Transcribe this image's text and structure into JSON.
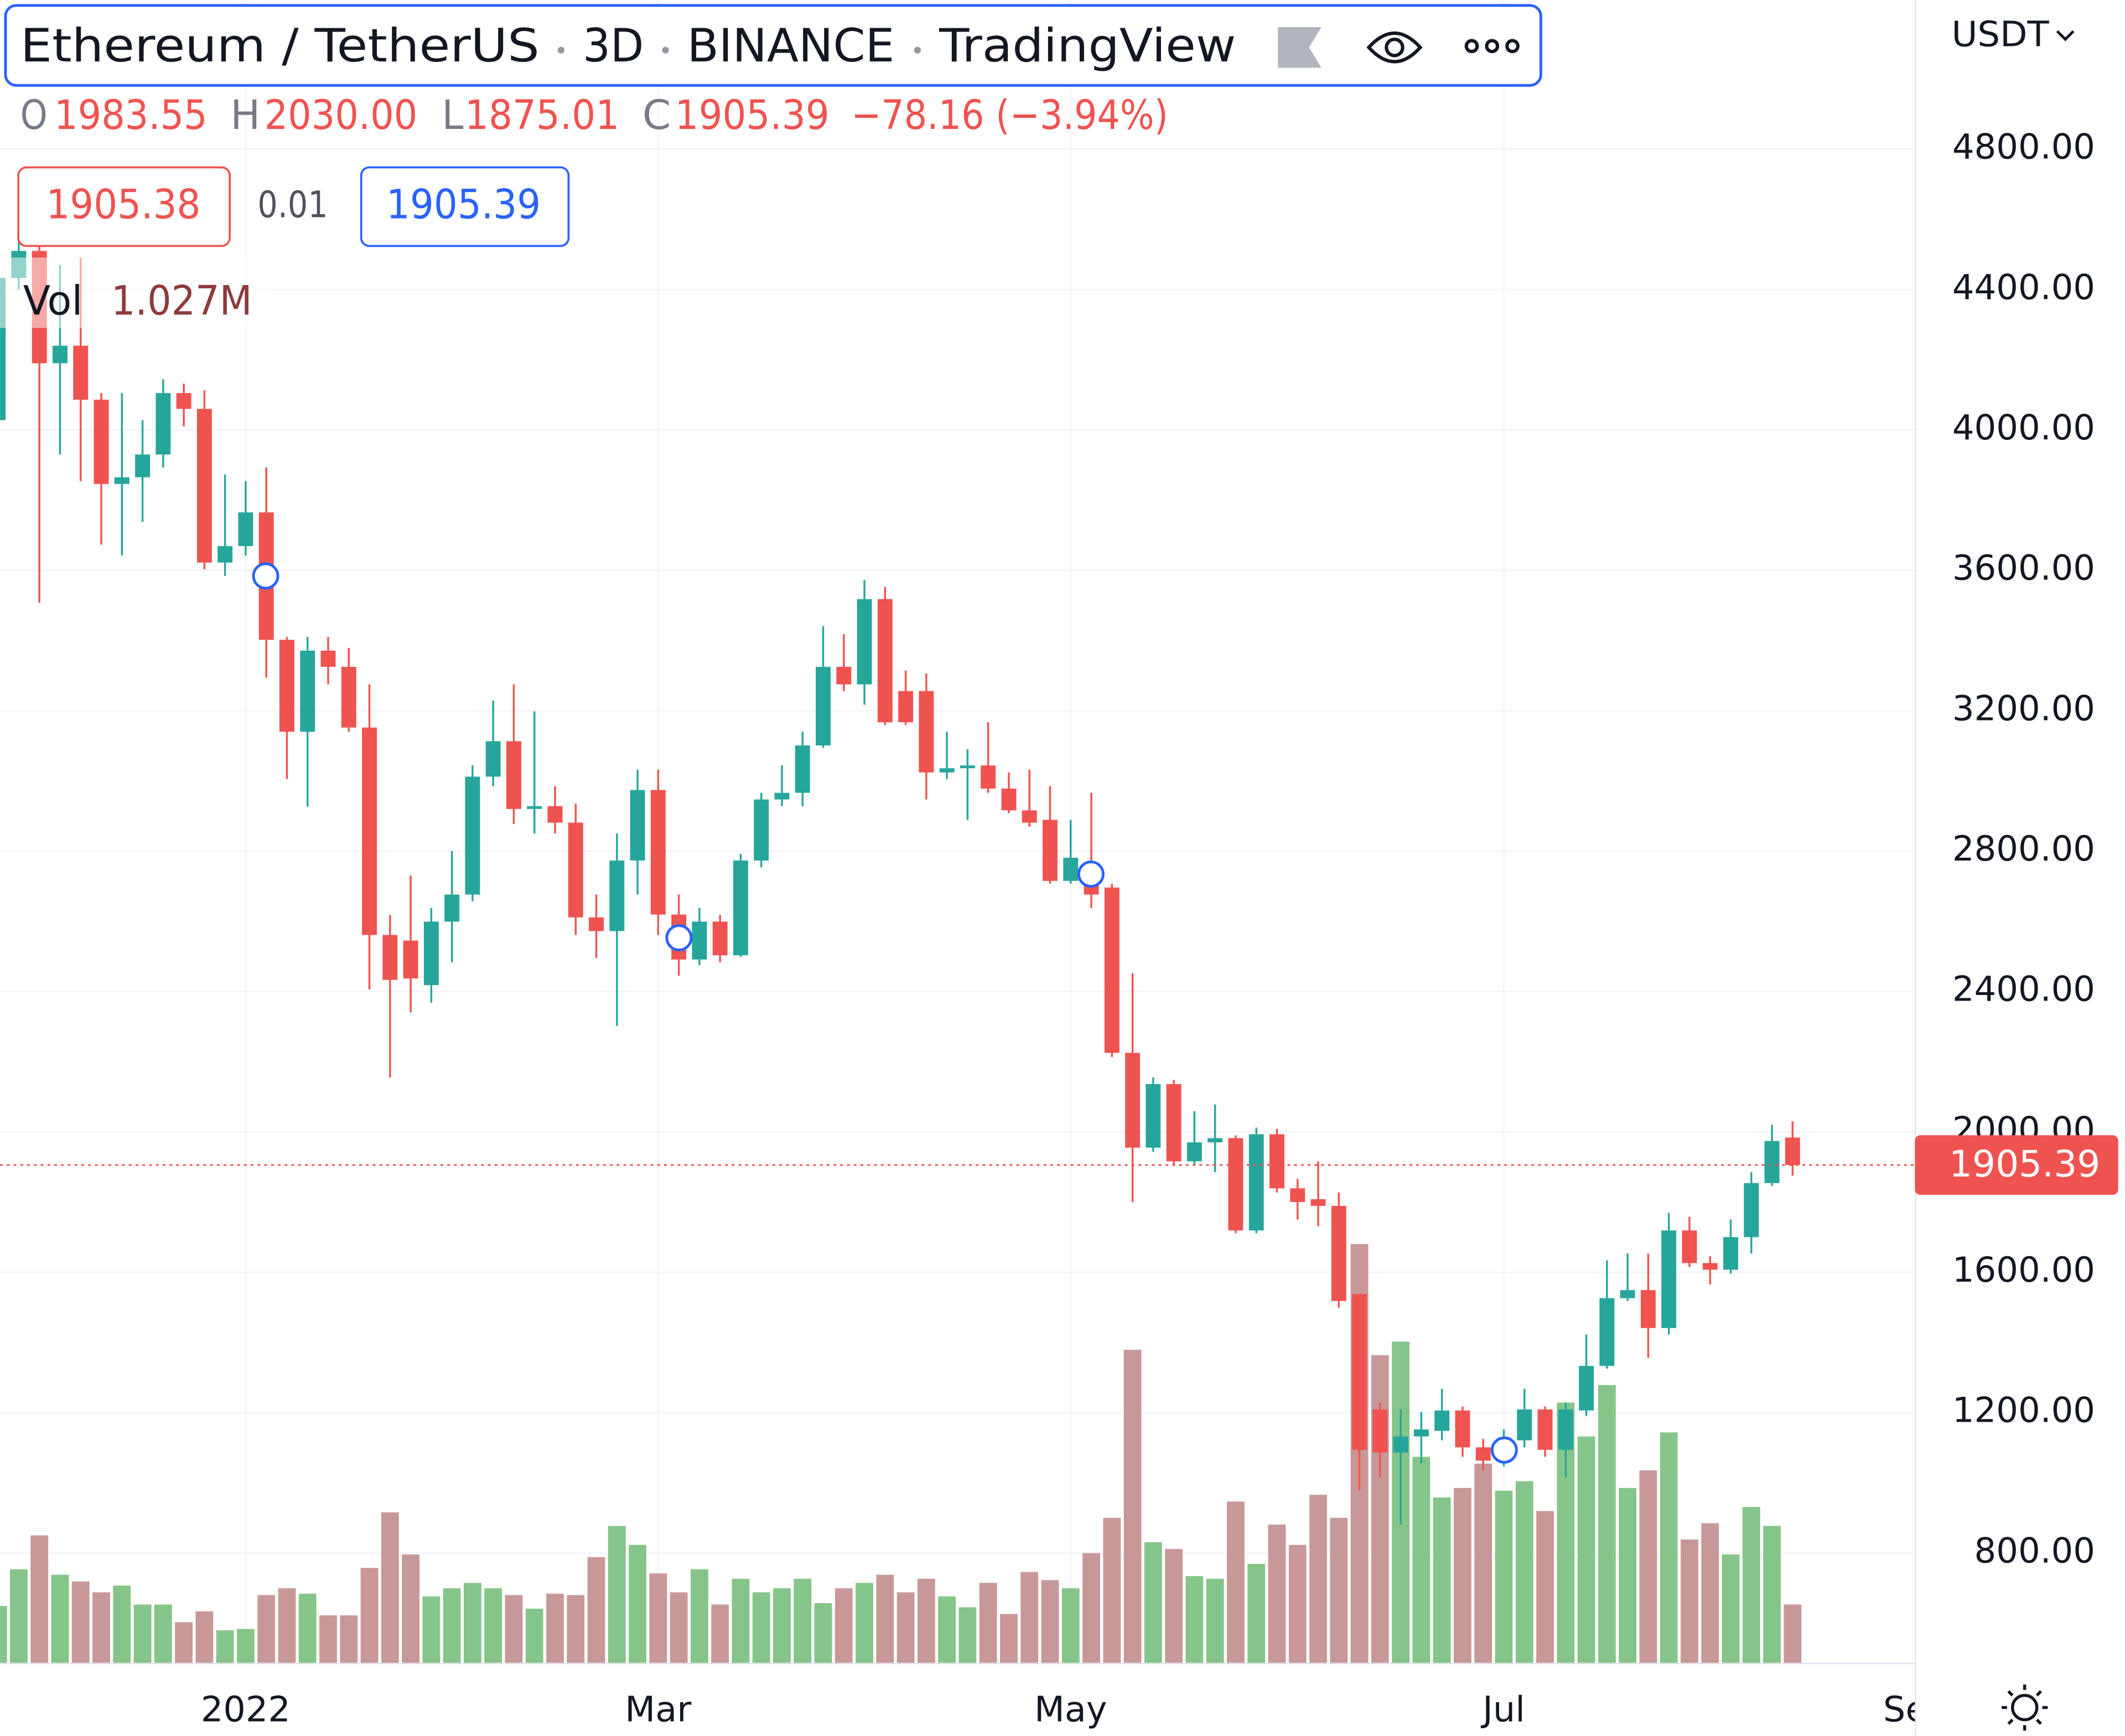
{
  "chart_data": {
    "type": "candlestick",
    "title": "Ethereum / TetherUS",
    "interval": "3D",
    "exchange": "BINANCE",
    "source": "TradingView",
    "ohlc_legend": [
      {
        "key": "O",
        "text": "1983.55"
      },
      {
        "key": "H",
        "text": "2030.00"
      },
      {
        "key": "L",
        "text": "1875.01"
      },
      {
        "key": "C",
        "text": "1905.39"
      }
    ],
    "change": "−78.16 (−3.94%)",
    "bid": 1905.38,
    "spread": 0.01,
    "ask": 1905.39,
    "currency": "USDT",
    "last_price": 1905.39,
    "grid": true,
    "up_color": "#26a69a",
    "down_color": "#ef5350",
    "volume_up_color": "#86c589",
    "volume_down_color": "#c89898",
    "ylim": [
      487,
      5225
    ],
    "yticks": [
      {
        "value": 800,
        "label": "800.00"
      },
      {
        "value": 1200,
        "label": "1200.00"
      },
      {
        "value": 1600,
        "label": "1600.00"
      },
      {
        "value": 2000,
        "label": "2000.00"
      },
      {
        "value": 2400,
        "label": "2400.00"
      },
      {
        "value": 2800,
        "label": "2800.00"
      },
      {
        "value": 3200,
        "label": "3200.00"
      },
      {
        "value": 3600,
        "label": "3600.00"
      },
      {
        "value": 4000,
        "label": "4000.00"
      },
      {
        "value": 4400,
        "label": "4400.00"
      },
      {
        "value": 4800,
        "label": "4800.00"
      }
    ],
    "volume_ylim": [
      0,
      29300000
    ],
    "categories": [
      null,
      null,
      null,
      null,
      null,
      null,
      null,
      null,
      null,
      null,
      null,
      null,
      "2022",
      null,
      null,
      null,
      null,
      null,
      null,
      null,
      null,
      null,
      null,
      null,
      null,
      null,
      null,
      null,
      null,
      null,
      null,
      null,
      "Mar",
      null,
      null,
      null,
      null,
      null,
      null,
      null,
      null,
      null,
      null,
      null,
      null,
      null,
      null,
      null,
      null,
      null,
      null,
      null,
      "May",
      null,
      null,
      null,
      null,
      null,
      null,
      null,
      null,
      null,
      null,
      null,
      null,
      null,
      null,
      null,
      null,
      null,
      null,
      null,
      null,
      "Jul",
      null,
      null,
      null,
      null,
      null,
      null,
      null,
      null,
      null,
      null,
      null,
      null,
      null,
      null,
      null,
      null,
      null,
      null,
      null,
      "Sep"
    ],
    "open": [
      4028,
      4433,
      4510,
      4190,
      4240,
      4086,
      3846,
      3865,
      3930,
      4105,
      4060,
      3622,
      3669,
      3765,
      3402,
      3140,
      3371,
      3325,
      3152,
      2561,
      2545,
      2418,
      2599,
      2676,
      3012,
      3113,
      2920,
      2928,
      2881,
      2611,
      2572,
      2773,
      2974,
      2619,
      2491,
      2599,
      2503,
      2773,
      2947,
      2966,
      3101,
      3325,
      3275,
      3518,
      3256,
      3256,
      3024,
      3036,
      3044,
      2978,
      2916,
      2889,
      2715,
      2754,
      2696,
      2225,
      1955,
      2136,
      1916,
      1970,
      1982,
      1719,
      1993,
      1839,
      1808,
      1789,
      1538,
      1209,
      1086,
      1132,
      1148,
      1206,
      1101,
      1074,
      1121,
      1209,
      1094,
      1206,
      1333,
      1526,
      1549,
      1441,
      1719,
      1626,
      1607,
      1700,
      1854,
      1983.55,
      null,
      null,
      null,
      null,
      null,
      null
    ],
    "high": [
      4480,
      4600,
      4530,
      4470,
      4490,
      4105,
      4105,
      4028,
      4144,
      4132,
      4113,
      3873,
      3854,
      3893,
      3410,
      3410,
      3410,
      3379,
      3275,
      2618,
      2730,
      2638,
      2800,
      3044,
      3229,
      3275,
      3198,
      2985,
      2935,
      2676,
      2850,
      3032,
      3032,
      2676,
      2638,
      2618,
      2792,
      2966,
      3044,
      3140,
      3441,
      3418,
      3572,
      3553,
      3314,
      3306,
      3140,
      3090,
      3167,
      3024,
      3032,
      2985,
      2889,
      2966,
      2707,
      2452,
      2155,
      2148,
      2059,
      2078,
      1990,
      2012,
      2009,
      1866,
      1916,
      1827,
      1538,
      1229,
      1209,
      1202,
      1268,
      1217,
      1125,
      1152,
      1268,
      1217,
      1229,
      1422,
      1634,
      1653,
      1653,
      1769,
      1758,
      1646,
      1750,
      1885,
      2020,
      2030,
      null,
      null,
      null,
      null,
      null,
      null
    ],
    "low": [
      3990,
      4400,
      3507,
      3930,
      3854,
      3673,
      3642,
      3738,
      3893,
      4010,
      3603,
      3584,
      3642,
      3294,
      3005,
      2927,
      3275,
      3140,
      2406,
      2155,
      2340,
      2368,
      2483,
      2657,
      2985,
      2877,
      2850,
      2850,
      2561,
      2495,
      2302,
      2676,
      2561,
      2445,
      2475,
      2483,
      2499,
      2754,
      2928,
      2928,
      3094,
      3256,
      3217,
      3159,
      3159,
      2947,
      3005,
      2889,
      2966,
      2908,
      2869,
      2707,
      2707,
      2638,
      2213,
      1800,
      1943,
      1904,
      1904,
      1885,
      1711,
      1711,
      1827,
      1750,
      1731,
      1499,
      978,
      1016,
      881,
      1055,
      1121,
      1074,
      1036,
      1047,
      1101,
      1074,
      1016,
      1190,
      1325,
      1518,
      1356,
      1422,
      1615,
      1565,
      1596,
      1653,
      1846,
      1875.01,
      null,
      null,
      null,
      null,
      null,
      null
    ],
    "close": [
      4433,
      4510,
      4190,
      4240,
      4086,
      3846,
      3865,
      3930,
      4105,
      4060,
      3622,
      3669,
      3765,
      3402,
      3140,
      3371,
      3325,
      3152,
      2561,
      2433,
      2437,
      2599,
      2676,
      3012,
      3113,
      2920,
      2928,
      2881,
      2611,
      2572,
      2773,
      2974,
      2619,
      2491,
      2599,
      2503,
      2773,
      2947,
      2966,
      3101,
      3325,
      3275,
      3518,
      3167,
      3167,
      3024,
      3036,
      3044,
      2978,
      2916,
      2881,
      2715,
      2781,
      2676,
      2225,
      1955,
      2136,
      1916,
      1970,
      1982,
      1719,
      1993,
      1839,
      1800,
      1789,
      1518,
      1094,
      1086,
      1132,
      1152,
      1206,
      1101,
      1063,
      1113,
      1209,
      1094,
      1209,
      1333,
      1526,
      1549,
      1441,
      1719,
      1626,
      1607,
      1700,
      1854,
      1974,
      1905.39,
      null,
      null,
      null,
      null,
      null,
      null
    ],
    "volume": {
      "name": "Vol",
      "values": [
        1003000,
        1648000,
        2245000,
        1552000,
        1433000,
        1242000,
        1361000,
        1027000,
        1027000,
        716000,
        907000,
        573000,
        597000,
        1194000,
        1313000,
        1218000,
        836000,
        836000,
        1672000,
        2651000,
        1910000,
        1170000,
        1313000,
        1409000,
        1313000,
        1194000,
        955000,
        1218000,
        1194000,
        1863000,
        2412000,
        2078000,
        1576000,
        1242000,
        1648000,
        1027000,
        1481000,
        1242000,
        1313000,
        1481000,
        1051000,
        1313000,
        1409000,
        1552000,
        1242000,
        1481000,
        1170000,
        979000,
        1409000,
        860000,
        1600000,
        1457000,
        1313000,
        1934000,
        2555000,
        5516000,
        2125000,
        2006000,
        1528000,
        1481000,
        2842000,
        1743000,
        2436000,
        2078000,
        2961000,
        2555000,
        7379000,
        5421000,
        5660000,
        3630000,
        2913000,
        3081000,
        3510000,
        3033000,
        3200000,
        2675000,
        4585000,
        3988000,
        4895000,
        3081000,
        3391000,
        4060000,
        2173000,
        2460000,
        1910000,
        2746000,
        2412000,
        1027000,
        null,
        null,
        null,
        null,
        null,
        null
      ],
      "value_labels": [
        null,
        null,
        null,
        null,
        null,
        null,
        null,
        null,
        null,
        null,
        null,
        null,
        null,
        null,
        null,
        null,
        null,
        null,
        null,
        null,
        null,
        null,
        null,
        null,
        null,
        null,
        null,
        null,
        null,
        null,
        null,
        null,
        null,
        null,
        null,
        null,
        null,
        null,
        null,
        null,
        null,
        null,
        null,
        null,
        null,
        null,
        null,
        null,
        null,
        null,
        null,
        null,
        null,
        null,
        null,
        null,
        null,
        null,
        null,
        null,
        null,
        null,
        null,
        null,
        null,
        null,
        null,
        null,
        null,
        null,
        null,
        null,
        null,
        null,
        null,
        null,
        null,
        null,
        null,
        null,
        null,
        null,
        null,
        null,
        null,
        null,
        null,
        "1.027M",
        null,
        null,
        null,
        null,
        null,
        null
      ]
    }
  }
}
